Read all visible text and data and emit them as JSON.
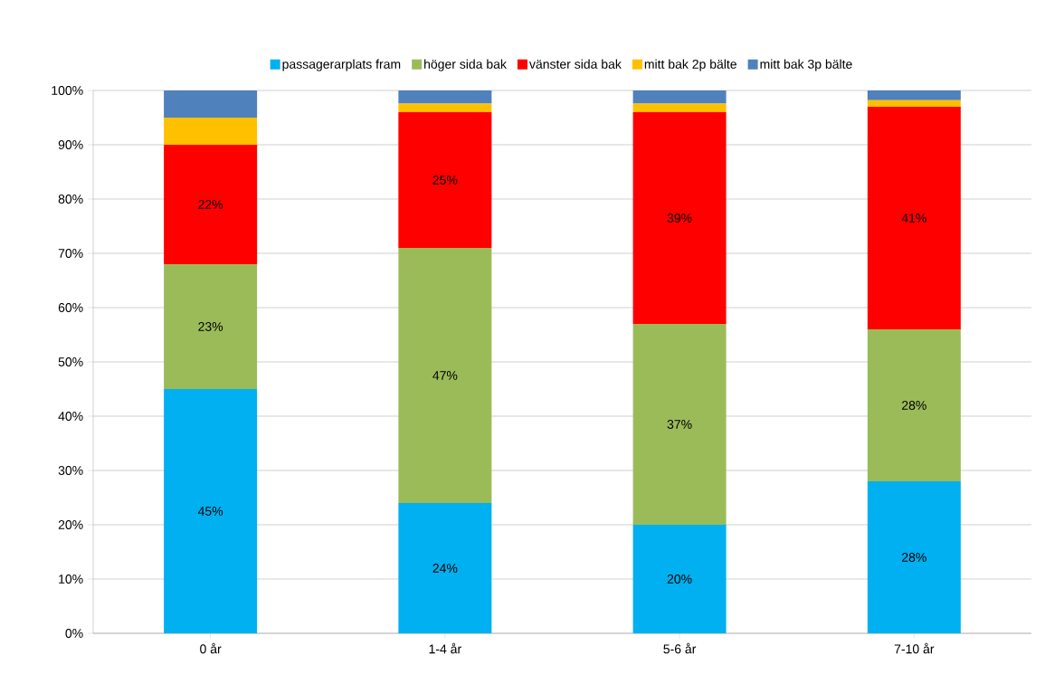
{
  "chart_data": {
    "type": "bar",
    "stacked": true,
    "categories": [
      "0 år",
      "1-4 år",
      "5-6 år",
      "7-10 år"
    ],
    "series": [
      {
        "name": "passagerarplats fram",
        "color": "#00b0f0",
        "values": [
          45,
          24,
          20,
          28
        ],
        "value_labels": [
          "45%",
          "24%",
          "20%",
          "28%"
        ]
      },
      {
        "name": "höger sida bak",
        "color": "#9bbb59",
        "values": [
          23,
          47,
          37,
          28
        ],
        "value_labels": [
          "23%",
          "47%",
          "37%",
          "28%"
        ]
      },
      {
        "name": "vänster sida bak",
        "color": "#ff0000",
        "values": [
          22,
          25,
          39,
          41
        ],
        "value_labels": [
          "22%",
          "25%",
          "39%",
          "41%"
        ]
      },
      {
        "name": "mitt bak 2p bälte",
        "color": "#ffc000",
        "values": [
          5,
          1.6,
          1.6,
          1.2
        ]
      },
      {
        "name": "mitt bak 3p bälte",
        "color": "#4f81bd",
        "values": [
          5,
          2.4,
          2.4,
          1.8
        ]
      }
    ],
    "ylim": [
      0,
      100
    ],
    "yticks": [
      {
        "value": 0,
        "label": "0%"
      },
      {
        "value": 10,
        "label": "10%"
      },
      {
        "value": 20,
        "label": "20%"
      },
      {
        "value": 30,
        "label": "30%"
      },
      {
        "value": 40,
        "label": "40%"
      },
      {
        "value": 50,
        "label": "50%"
      },
      {
        "value": 60,
        "label": "60%"
      },
      {
        "value": 70,
        "label": "70%"
      },
      {
        "value": 80,
        "label": "80%"
      },
      {
        "value": 90,
        "label": "90%"
      },
      {
        "value": 100,
        "label": "100%"
      }
    ],
    "grid": "y",
    "legend": "top"
  }
}
